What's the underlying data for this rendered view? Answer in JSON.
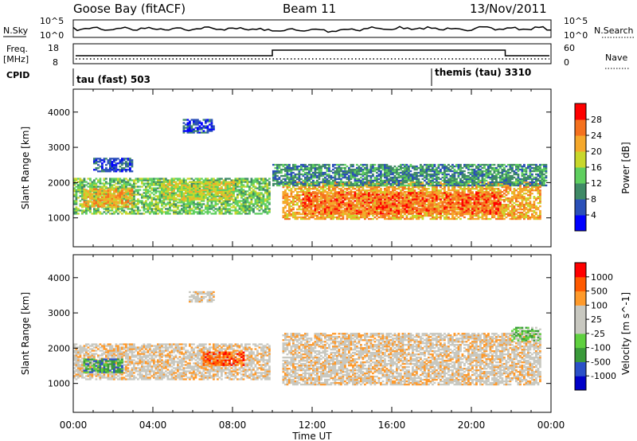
{
  "header": {
    "station": "Goose Bay (fitACF)",
    "beam": "Beam 11",
    "date": "13/Nov/2011"
  },
  "summary": {
    "nsky_label": "N.Sky",
    "nsky_ticks": [
      "10^5",
      "10^0"
    ],
    "nsearch_label": "N.Search",
    "freq_label": "Freq.",
    "freq_unit": "[MHz]",
    "freq_ticks": [
      "18",
      "8"
    ],
    "nave_label": "Nave",
    "nave_ticks": [
      "60",
      "0"
    ],
    "cpid_label": "CPID",
    "cpid_segments": [
      {
        "label": "tau (fast) 503",
        "start_hour": 0,
        "end_hour": 18
      },
      {
        "label": "themis (tau) 3310",
        "start_hour": 18,
        "end_hour": 24
      }
    ]
  },
  "colors": {
    "power": [
      "#0000ff",
      "#2b50b8",
      "#3f8a66",
      "#5fcf5f",
      "#c8d72b",
      "#f5a82b",
      "#f5711e",
      "#ff0000"
    ],
    "velocity": [
      "#ff0000",
      "#ff5a00",
      "#ff9a2b",
      "#c8c8c0",
      "#c8c8c0",
      "#5fd03f",
      "#3a9a3a",
      "#2b50c8",
      "#0000c8"
    ]
  },
  "chart_data": [
    {
      "type": "heatmap",
      "title": "Power",
      "xlabel": "Time UT",
      "ylabel": "Slant Range [km]",
      "xlim": [
        0,
        24
      ],
      "ylim": [
        180,
        4650
      ],
      "x_ticks": [
        "00:00",
        "04:00",
        "08:00",
        "12:00",
        "16:00",
        "20:00",
        "00:00"
      ],
      "y_ticks": [
        1000,
        2000,
        3000,
        4000
      ],
      "colorbar": {
        "label": "Power [dB]",
        "ticks": [
          "4",
          "8",
          "12",
          "16",
          "20",
          "24",
          "28"
        ]
      },
      "bands": [
        {
          "t0": 0.0,
          "t1": 9.8,
          "r0": 1100,
          "r1": 2100,
          "level": 3
        },
        {
          "t0": 0.5,
          "t1": 3.0,
          "r0": 1300,
          "r1": 1800,
          "level": 5
        },
        {
          "t0": 4.5,
          "t1": 8.0,
          "r0": 1500,
          "r1": 2000,
          "level": 4
        },
        {
          "t0": 10.5,
          "t1": 23.5,
          "r0": 950,
          "r1": 2000,
          "level": 5
        },
        {
          "t0": 11.5,
          "t1": 21.5,
          "r0": 1100,
          "r1": 1700,
          "level": 6
        },
        {
          "t0": 10.0,
          "t1": 23.8,
          "r0": 1900,
          "r1": 2500,
          "level": 2
        },
        {
          "t0": 5.5,
          "t1": 7.0,
          "r0": 3400,
          "r1": 3800,
          "level": 1
        },
        {
          "t0": 1.0,
          "t1": 3.0,
          "r0": 2300,
          "r1": 2700,
          "level": 1
        }
      ]
    },
    {
      "type": "heatmap",
      "title": "Velocity",
      "xlabel": "Time UT",
      "ylabel": "Slant Range [km]",
      "xlim": [
        0,
        24
      ],
      "ylim": [
        180,
        4650
      ],
      "x_ticks": [
        "00:00",
        "04:00",
        "08:00",
        "12:00",
        "16:00",
        "20:00",
        "00:00"
      ],
      "y_ticks": [
        1000,
        2000,
        3000,
        4000
      ],
      "colorbar": {
        "label": "Velocity [m s^-1]",
        "ticks": [
          "1000",
          "500",
          "100",
          "25",
          "-25",
          "-100",
          "-500",
          "-1000"
        ]
      },
      "bands": [
        {
          "t0": 0.0,
          "t1": 9.8,
          "r0": 1100,
          "r1": 2100,
          "level": 3
        },
        {
          "t0": 0.5,
          "t1": 2.5,
          "r0": 1300,
          "r1": 1700,
          "level": 6
        },
        {
          "t0": 6.5,
          "t1": 8.5,
          "r0": 1500,
          "r1": 1900,
          "level": 1
        },
        {
          "t0": 10.5,
          "t1": 23.5,
          "r0": 950,
          "r1": 2400,
          "level": 3
        },
        {
          "t0": 5.8,
          "t1": 7.0,
          "r0": 3300,
          "r1": 3600,
          "level": 3
        },
        {
          "t0": 22.0,
          "t1": 23.5,
          "r0": 2200,
          "r1": 2600,
          "level": 5
        }
      ]
    }
  ]
}
